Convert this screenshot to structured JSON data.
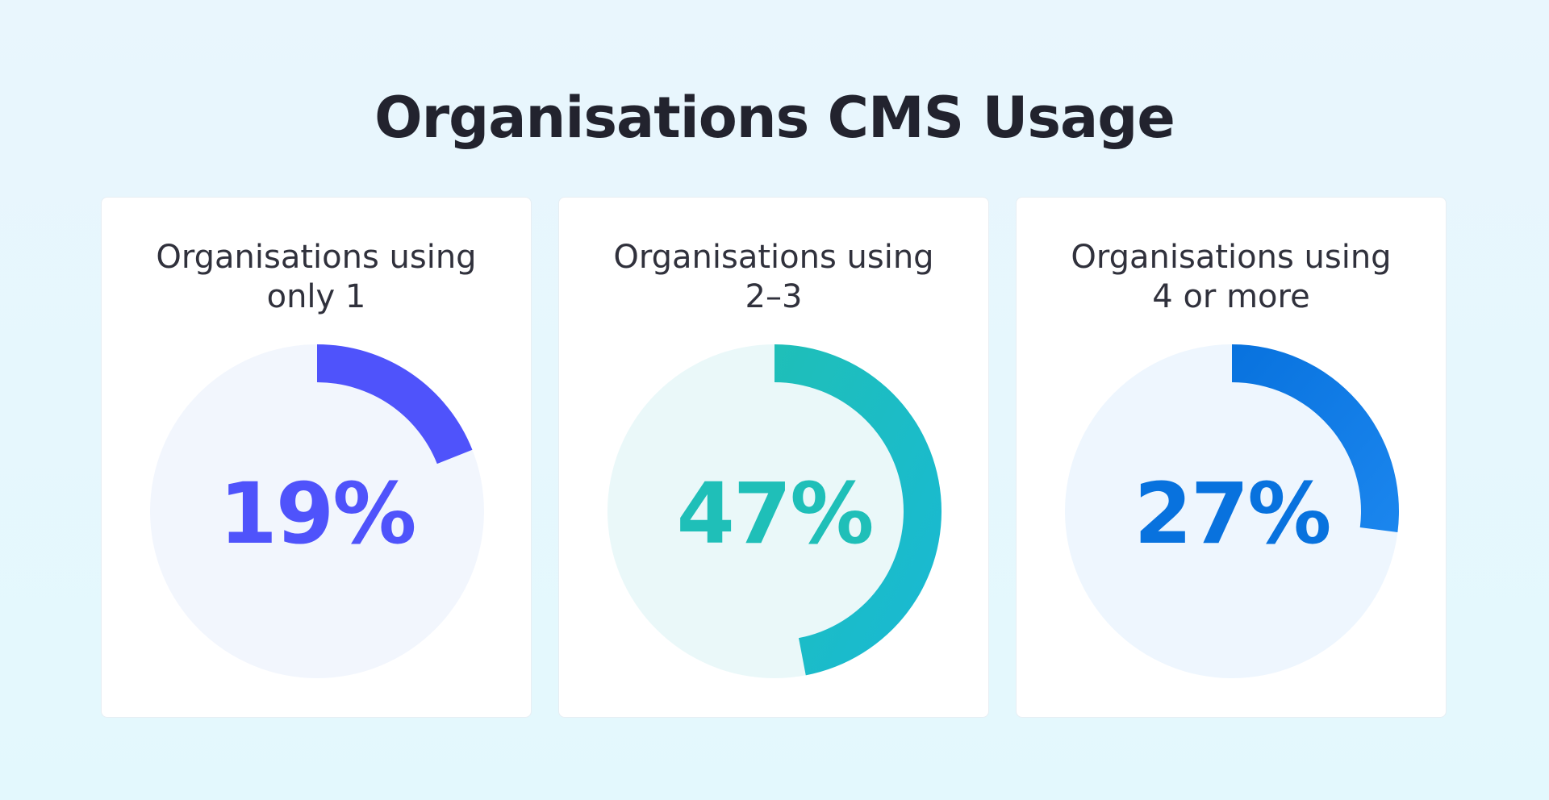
{
  "title": "Organisations CMS Usage",
  "chart_data": [
    {
      "type": "pie",
      "label_line1": "Organisations using",
      "label_line2": "only 1",
      "value": 19,
      "value_label": "19%",
      "color": "#4f53fb",
      "color_end": "#4f53fb",
      "track_color": "#f2f6fd"
    },
    {
      "type": "pie",
      "label_line1": "Organisations using",
      "label_line2": "2–3",
      "value": 47,
      "value_label": "47%",
      "color": "#1fbfb8",
      "color_end": "#18b9d5",
      "track_color": "#eaf8f9"
    },
    {
      "type": "pie",
      "label_line1": "Organisations using",
      "label_line2": "4 or more",
      "value": 27,
      "value_label": "27%",
      "color": "#0872de",
      "color_end": "#1b86ee",
      "track_color": "#eef6fe"
    }
  ]
}
